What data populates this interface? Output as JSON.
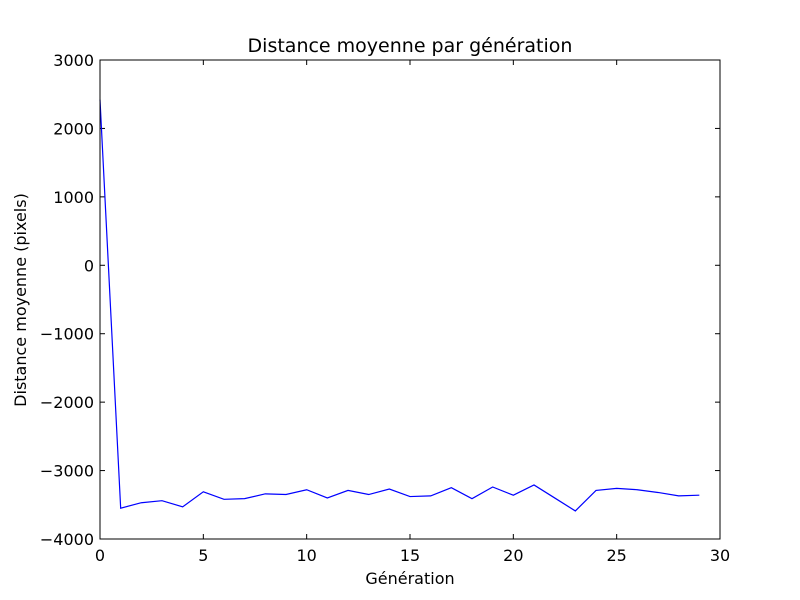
{
  "chart_data": {
    "type": "line",
    "title": "Distance moyenne par génération",
    "xlabel": "Génération",
    "ylabel": "Distance moyenne (pixels)",
    "xlim": [
      0,
      30
    ],
    "ylim": [
      -4000,
      3000
    ],
    "xticks": [
      0,
      5,
      10,
      15,
      20,
      25,
      30
    ],
    "yticks": [
      -4000,
      -3000,
      -2000,
      -1000,
      0,
      1000,
      2000,
      3000
    ],
    "xtick_labels": [
      "0",
      "5",
      "10",
      "15",
      "20",
      "25",
      "30"
    ],
    "ytick_labels": [
      "−4000",
      "−3000",
      "−2000",
      "−1000",
      "0",
      "1000",
      "2000",
      "3000"
    ],
    "grid": false,
    "line_color": "#0000ff",
    "series": [
      {
        "x": [
          0,
          1,
          2,
          3,
          4,
          5,
          6,
          7,
          8,
          9,
          10,
          11,
          12,
          13,
          14,
          15,
          16,
          17,
          18,
          19,
          20,
          21,
          22,
          23,
          24,
          25,
          26,
          27,
          28,
          29
        ],
        "values": [
          2420,
          -3550,
          -3470,
          -3440,
          -3530,
          -3310,
          -3420,
          -3410,
          -3340,
          -3350,
          -3280,
          -3400,
          -3290,
          -3350,
          -3270,
          -3380,
          -3370,
          -3250,
          -3410,
          -3240,
          -3360,
          -3210,
          -3400,
          -3590,
          -3290,
          -3260,
          -3280,
          -3320,
          -3370,
          -3360
        ]
      }
    ]
  }
}
